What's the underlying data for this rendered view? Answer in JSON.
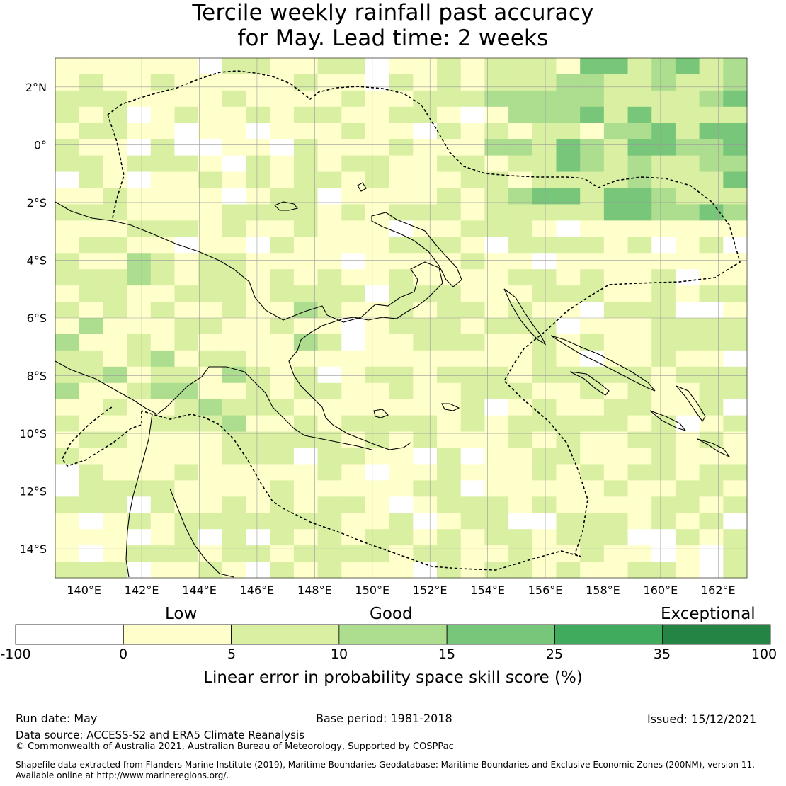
{
  "title": {
    "line1": "Tercile weekly rainfall past accuracy",
    "line2": "for May. Lead time: 2 weeks"
  },
  "map": {
    "lon_range": [
      139,
      163
    ],
    "lat_range": [
      -15,
      3
    ],
    "lon_ticks": [
      "140°E",
      "142°E",
      "144°E",
      "146°E",
      "148°E",
      "150°E",
      "152°E",
      "154°E",
      "156°E",
      "158°E",
      "160°E",
      "162°E"
    ],
    "lat_ticks": [
      "2°N",
      "0°",
      "2°S",
      "4°S",
      "6°S",
      "8°S",
      "10°S",
      "12°S",
      "14°S"
    ],
    "region_shown": "Papua New Guinea and Solomon Islands",
    "boundary_style": "dashed EEZ outline",
    "gridlines": true
  },
  "colorbar": {
    "categories": [
      "Low",
      "Good",
      "Exceptional"
    ],
    "tick_labels": [
      "-100",
      "0",
      "5",
      "10",
      "15",
      "25",
      "35",
      "100"
    ],
    "colors": [
      "#ffffff",
      "#ffffcc",
      "#d9f0a3",
      "#addd8e",
      "#78c679",
      "#41ab5d",
      "#238443"
    ],
    "label": "Linear error in probability space skill score (%)"
  },
  "footer": {
    "run_date": "Run date: May",
    "base_period": "Base period: 1981-2018",
    "issued": "Issued: 15/12/2021",
    "data_source": "Data source: ACCESS-S2 and ERA5 Climate Reanalysis",
    "copyright": "© Commonwealth of Australia 2021, Australian Bureau of Meteorology, Supported by COSPPac",
    "shapefile_line1": "Shapefile data extracted from Flanders Marine Institute (2019), Maritime Boundaries Geodatabase: Maritime Boundaries and Exclusive Economic Zones (200NM), version 11.",
    "shapefile_line2": "Available online at http://www.marineregions.org/."
  }
}
